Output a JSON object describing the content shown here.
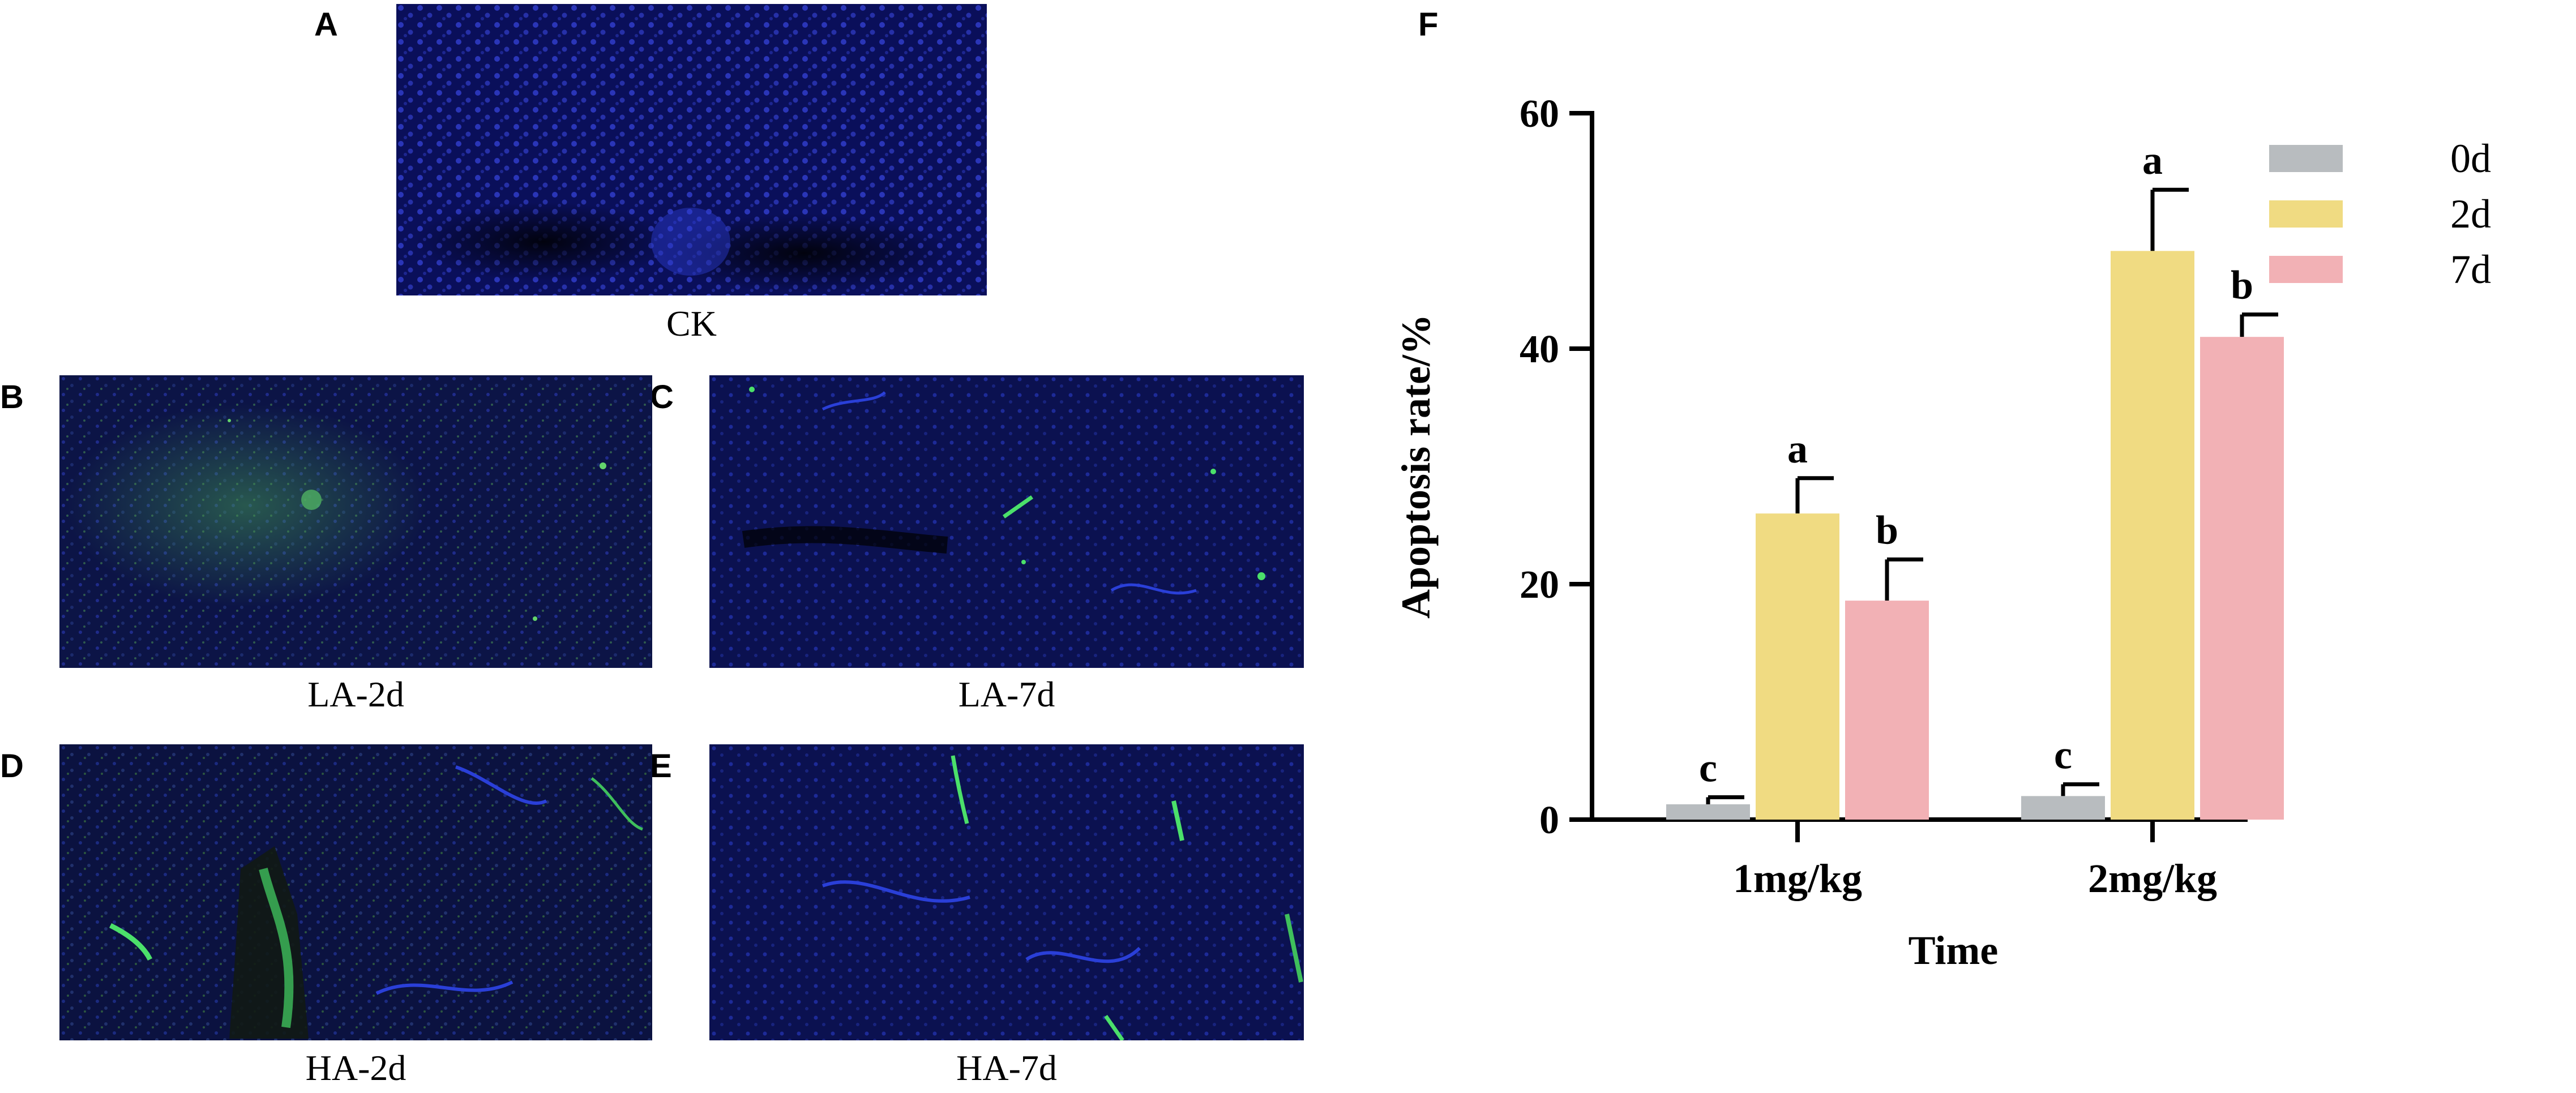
{
  "panels": {
    "A": {
      "letter": "A",
      "caption": "CK"
    },
    "B": {
      "letter": "B",
      "caption": "LA-2d"
    },
    "C": {
      "letter": "C",
      "caption": "LA-7d"
    },
    "D": {
      "letter": "D",
      "caption": "HA-2d"
    },
    "E": {
      "letter": "E",
      "caption": "HA-7d"
    },
    "F": {
      "letter": "F"
    }
  },
  "chart_data": {
    "type": "bar",
    "xlabel": "Time",
    "ylabel": "Apoptosis rate/%",
    "ylim": [
      0,
      60
    ],
    "yticks": [
      0,
      20,
      40,
      60
    ],
    "categories": [
      "1mg/kg",
      "2mg/kg"
    ],
    "legend_position": "right",
    "grid": false,
    "series": [
      {
        "name": "0d",
        "color": "#b8bcbf",
        "values": [
          1.3,
          2.0
        ],
        "errors": [
          0.6,
          1.0
        ],
        "letters": [
          "c",
          "c"
        ]
      },
      {
        "name": "2d",
        "color": "#f0db82",
        "values": [
          26.0,
          48.3
        ],
        "errors": [
          3.0,
          5.2
        ],
        "letters": [
          "a",
          "a"
        ]
      },
      {
        "name": "7d",
        "color": "#f2b1b5",
        "values": [
          18.6,
          41.0
        ],
        "errors": [
          3.5,
          1.9
        ],
        "letters": [
          "b",
          "b"
        ]
      }
    ]
  }
}
